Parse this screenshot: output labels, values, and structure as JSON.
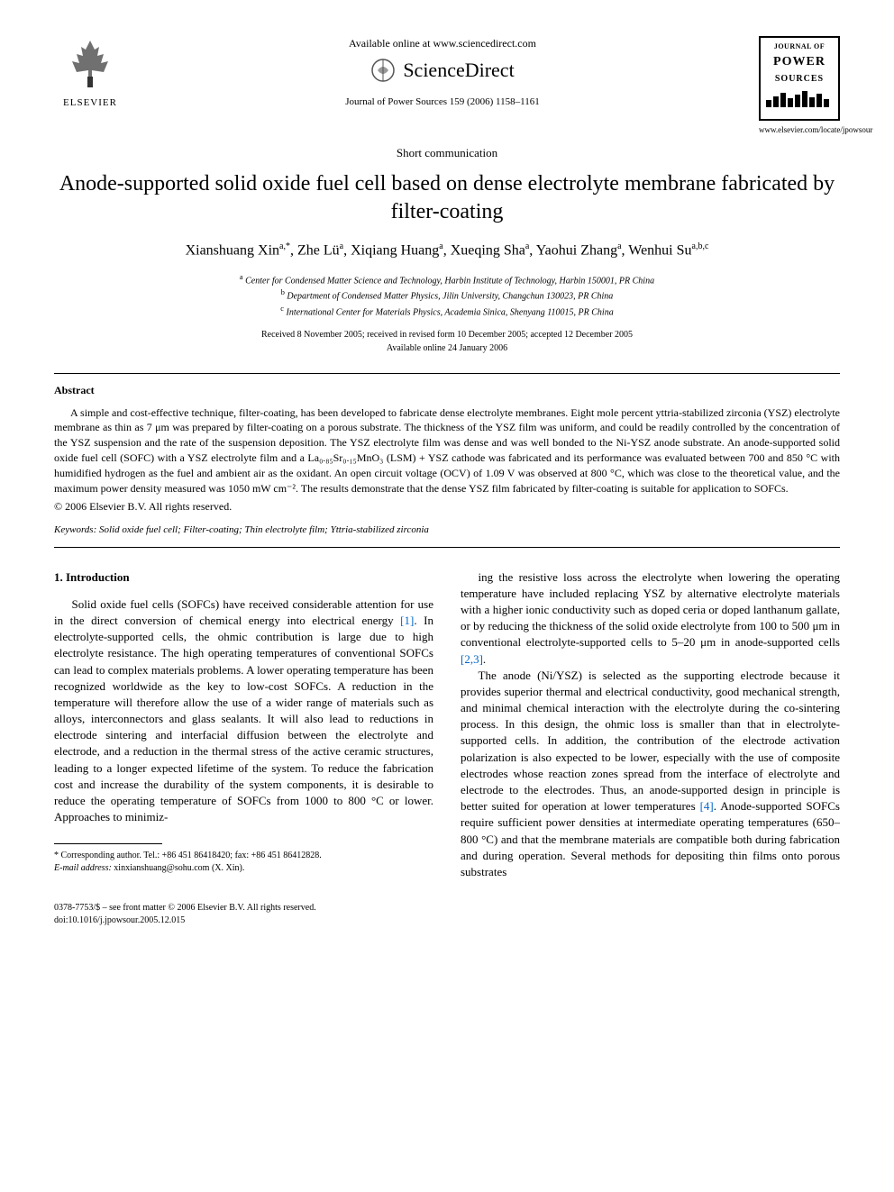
{
  "header": {
    "elsevier_label": "ELSEVIER",
    "available_online": "Available online at www.sciencedirect.com",
    "sciencedirect": "ScienceDirect",
    "journal_ref": "Journal of Power Sources 159 (2006) 1158–1161",
    "journal_logo": {
      "top": "JOURNAL OF",
      "power": "POWER",
      "sources": "SOURCES"
    },
    "journal_url": "www.elsevier.com/locate/jpowsour"
  },
  "article": {
    "type": "Short communication",
    "title": "Anode-supported solid oxide fuel cell based on dense electrolyte membrane fabricated by filter-coating",
    "authors_html": "Xianshuang Xin<sup>a,*</sup>, Zhe Lü<sup>a</sup>, Xiqiang Huang<sup>a</sup>, Xueqing Sha<sup>a</sup>, Yaohui Zhang<sup>a</sup>, Wenhui Su<sup>a,b,c</sup>",
    "affiliations": [
      {
        "sup": "a",
        "text": "Center for Condensed Matter Science and Technology, Harbin Institute of Technology, Harbin 150001, PR China"
      },
      {
        "sup": "b",
        "text": "Department of Condensed Matter Physics, Jilin University, Changchun 130023, PR China"
      },
      {
        "sup": "c",
        "text": "International Center for Materials Physics, Academia Sinica, Shenyang 110015, PR China"
      }
    ],
    "dates": {
      "received": "Received 8 November 2005; received in revised form 10 December 2005; accepted 12 December 2005",
      "available": "Available online 24 January 2006"
    }
  },
  "abstract": {
    "heading": "Abstract",
    "text": "A simple and cost-effective technique, filter-coating, has been developed to fabricate dense electrolyte membranes. Eight mole percent yttria-stabilized zirconia (YSZ) electrolyte membrane as thin as 7 μm was prepared by filter-coating on a porous substrate. The thickness of the YSZ film was uniform, and could be readily controlled by the concentration of the YSZ suspension and the rate of the suspension deposition. The YSZ electrolyte film was dense and was well bonded to the Ni-YSZ anode substrate. An anode-supported solid oxide fuel cell (SOFC) with a YSZ electrolyte film and a La₀.₈₅Sr₀.₁₅MnO₃ (LSM) + YSZ cathode was fabricated and its performance was evaluated between 700 and 850 °C with humidified hydrogen as the fuel and ambient air as the oxidant. An open circuit voltage (OCV) of 1.09 V was observed at 800 °C, which was close to the theoretical value, and the maximum power density measured was 1050 mW cm⁻². The results demonstrate that the dense YSZ film fabricated by filter-coating is suitable for application to SOFCs.",
    "copyright": "© 2006 Elsevier B.V. All rights reserved."
  },
  "keywords": {
    "label": "Keywords:",
    "text": "Solid oxide fuel cell; Filter-coating; Thin electrolyte film; Yttria-stabilized zirconia"
  },
  "body": {
    "section_heading": "1. Introduction",
    "col1_p1": "Solid oxide fuel cells (SOFCs) have received considerable attention for use in the direct conversion of chemical energy into electrical energy [1]. In electrolyte-supported cells, the ohmic contribution is large due to high electrolyte resistance. The high operating temperatures of conventional SOFCs can lead to complex materials problems. A lower operating temperature has been recognized worldwide as the key to low-cost SOFCs. A reduction in the temperature will therefore allow the use of a wider range of materials such as alloys, interconnectors and glass sealants. It will also lead to reductions in electrode sintering and interfacial diffusion between the electrolyte and electrode, and a reduction in the thermal stress of the active ceramic structures, leading to a longer expected lifetime of the system. To reduce the fabrication cost and increase the durability of the system components, it is desirable to reduce the operating temperature of SOFCs from 1000 to 800 °C or lower. Approaches to minimiz-",
    "col2_p1": "ing the resistive loss across the electrolyte when lowering the operating temperature have included replacing YSZ by alternative electrolyte materials with a higher ionic conductivity such as doped ceria or doped lanthanum gallate, or by reducing the thickness of the solid oxide electrolyte from 100 to 500 μm in conventional electrolyte-supported cells to 5–20 μm in anode-supported cells [2,3].",
    "col2_p2": "The anode (Ni/YSZ) is selected as the supporting electrode because it provides superior thermal and electrical conductivity, good mechanical strength, and minimal chemical interaction with the electrolyte during the co-sintering process. In this design, the ohmic loss is smaller than that in electrolyte-supported cells. In addition, the contribution of the electrode activation polarization is also expected to be lower, especially with the use of composite electrodes whose reaction zones spread from the interface of electrolyte and electrode to the electrodes. Thus, an anode-supported design in principle is better suited for operation at lower temperatures [4]. Anode-supported SOFCs require sufficient power densities at intermediate operating temperatures (650–800 °C) and that the membrane materials are compatible both during fabrication and during operation. Several methods for depositing thin films onto porous substrates"
  },
  "footnote": {
    "corresponding": "* Corresponding author. Tel.: +86 451 86418420; fax: +86 451 86412828.",
    "email_label": "E-mail address:",
    "email": "xinxianshuang@sohu.com (X. Xin)."
  },
  "footer": {
    "line1": "0378-7753/$ – see front matter © 2006 Elsevier B.V. All rights reserved.",
    "line2": "doi:10.1016/j.jpowsour.2005.12.015"
  },
  "colors": {
    "text": "#000000",
    "link": "#0066cc",
    "background": "#ffffff"
  },
  "typography": {
    "body_size_pt": 10,
    "title_size_pt": 18,
    "authors_size_pt": 12,
    "affil_size_pt": 8,
    "abstract_size_pt": 9,
    "font_family": "Times New Roman"
  }
}
